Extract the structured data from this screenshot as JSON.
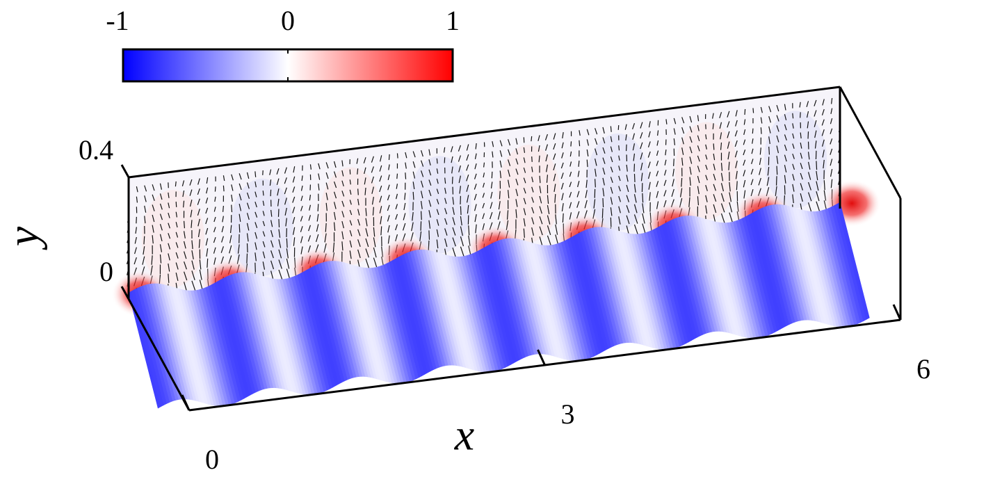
{
  "chart_data": {
    "type": "field3d",
    "xlabel": "x",
    "ylabel": "y",
    "xlim": [
      0,
      6
    ],
    "xticks": [
      0,
      3,
      6
    ],
    "ylim": [
      0,
      0.4
    ],
    "yticks": [
      0,
      0.4
    ],
    "colorbar": {
      "lim": [
        -1,
        1
      ],
      "ticks": [
        -1,
        0,
        1
      ],
      "colors": [
        "#0000ff",
        "#ffffff",
        "#ff0000"
      ]
    }
  }
}
